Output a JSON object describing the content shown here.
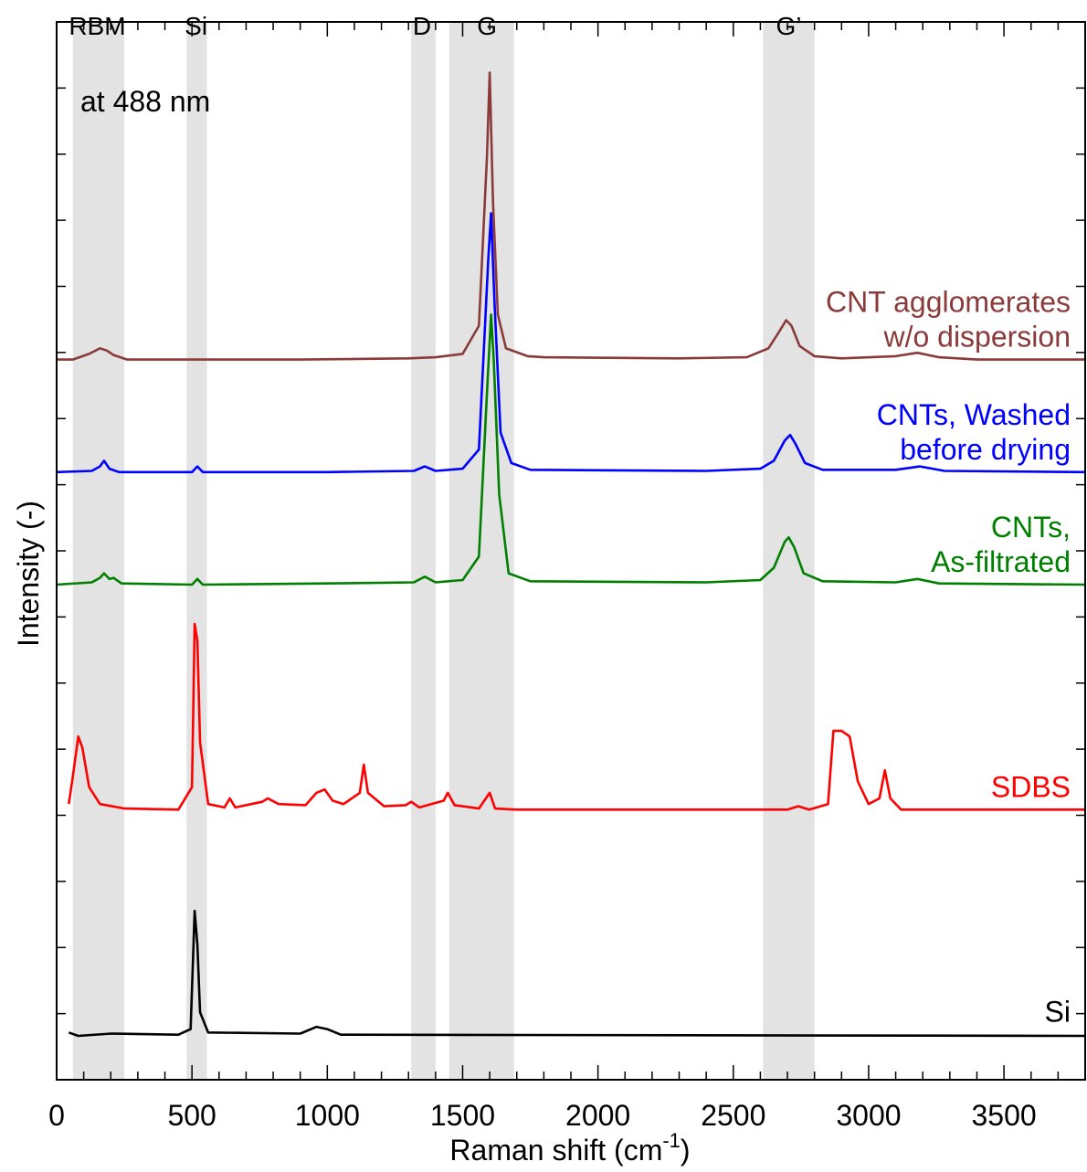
{
  "chart_data": {
    "type": "line",
    "xlabel": "Raman shift (cm",
    "xlabel_sup": "-1",
    "xlabel_end": ")",
    "ylabel": "Intensity (-)",
    "annotation": "at 488 nm",
    "xlim": [
      0,
      3800
    ],
    "x_ticks": [
      0,
      500,
      1000,
      1500,
      2000,
      2500,
      3000,
      3500
    ],
    "x_minor_step": 100,
    "y_tick_count": 15,
    "grid": false,
    "bands": [
      {
        "label": "RBM",
        "x0": 60,
        "x1": 250,
        "label_x": 150
      },
      {
        "label": "Si",
        "x0": 480,
        "x1": 555,
        "label_x": 515
      },
      {
        "label": "D",
        "x0": 1310,
        "x1": 1400,
        "label_x": 1350
      },
      {
        "label": "G",
        "x0": 1450,
        "x1": 1690,
        "label_x": 1590
      },
      {
        "label": "G’",
        "x0": 2610,
        "x1": 2800,
        "label_x": 2705
      }
    ],
    "series": [
      {
        "name": "CNT agglomerates w/o dispersion",
        "label_lines": [
          "CNT agglomerates",
          "w/o dispersion"
        ],
        "color": "#8B3A3A",
        "x_start": 0,
        "baseline": 2.0,
        "points": [
          [
            0,
            2.0
          ],
          [
            60,
            2.0
          ],
          [
            120,
            2.05
          ],
          [
            160,
            2.1
          ],
          [
            185,
            2.08
          ],
          [
            210,
            2.04
          ],
          [
            260,
            2.0
          ],
          [
            900,
            2.0
          ],
          [
            1300,
            2.01
          ],
          [
            1400,
            2.02
          ],
          [
            1500,
            2.05
          ],
          [
            1560,
            2.3
          ],
          [
            1590,
            3.8
          ],
          [
            1600,
            4.55
          ],
          [
            1612,
            3.4
          ],
          [
            1630,
            2.4
          ],
          [
            1660,
            2.1
          ],
          [
            1740,
            2.03
          ],
          [
            1800,
            2.02
          ],
          [
            2300,
            2.01
          ],
          [
            2550,
            2.02
          ],
          [
            2630,
            2.1
          ],
          [
            2670,
            2.25
          ],
          [
            2695,
            2.35
          ],
          [
            2715,
            2.3
          ],
          [
            2745,
            2.12
          ],
          [
            2800,
            2.03
          ],
          [
            2900,
            2.01
          ],
          [
            3100,
            2.03
          ],
          [
            3180,
            2.06
          ],
          [
            3260,
            2.02
          ],
          [
            3400,
            2.0
          ],
          [
            3800,
            2.0
          ]
        ]
      },
      {
        "name": "CNTs, Washed before drying",
        "label_lines": [
          "CNTs, Washed",
          "before drying"
        ],
        "color": "#0000FF",
        "x_start": 0,
        "baseline": 1.0,
        "points": [
          [
            0,
            1.0
          ],
          [
            130,
            1.01
          ],
          [
            160,
            1.05
          ],
          [
            175,
            1.1
          ],
          [
            195,
            1.03
          ],
          [
            230,
            1.0
          ],
          [
            500,
            1.0
          ],
          [
            520,
            1.05
          ],
          [
            540,
            1.0
          ],
          [
            1000,
            1.0
          ],
          [
            1320,
            1.01
          ],
          [
            1360,
            1.05
          ],
          [
            1400,
            1.01
          ],
          [
            1500,
            1.03
          ],
          [
            1560,
            1.2
          ],
          [
            1595,
            2.9
          ],
          [
            1605,
            3.3
          ],
          [
            1618,
            2.5
          ],
          [
            1640,
            1.35
          ],
          [
            1680,
            1.08
          ],
          [
            1750,
            1.02
          ],
          [
            2400,
            1.01
          ],
          [
            2600,
            1.03
          ],
          [
            2650,
            1.1
          ],
          [
            2690,
            1.28
          ],
          [
            2710,
            1.33
          ],
          [
            2730,
            1.25
          ],
          [
            2765,
            1.08
          ],
          [
            2830,
            1.02
          ],
          [
            3100,
            1.02
          ],
          [
            3190,
            1.05
          ],
          [
            3280,
            1.01
          ],
          [
            3800,
            1.0
          ]
        ]
      },
      {
        "name": "CNTs, As-filtrated",
        "label_lines": [
          "CNTs,",
          "As-filtrated"
        ],
        "color": "#008000",
        "x_start": 0,
        "baseline": 0.0,
        "points": [
          [
            0,
            0.0
          ],
          [
            130,
            0.02
          ],
          [
            160,
            0.06
          ],
          [
            175,
            0.1
          ],
          [
            195,
            0.05
          ],
          [
            210,
            0.06
          ],
          [
            240,
            0.01
          ],
          [
            500,
            0.0
          ],
          [
            520,
            0.05
          ],
          [
            540,
            0.0
          ],
          [
            1000,
            0.01
          ],
          [
            1320,
            0.02
          ],
          [
            1360,
            0.07
          ],
          [
            1400,
            0.02
          ],
          [
            1500,
            0.04
          ],
          [
            1560,
            0.25
          ],
          [
            1590,
            1.7
          ],
          [
            1605,
            2.4
          ],
          [
            1615,
            2.0
          ],
          [
            1635,
            0.8
          ],
          [
            1670,
            0.1
          ],
          [
            1750,
            0.03
          ],
          [
            2400,
            0.02
          ],
          [
            2600,
            0.04
          ],
          [
            2650,
            0.15
          ],
          [
            2690,
            0.38
          ],
          [
            2705,
            0.42
          ],
          [
            2725,
            0.33
          ],
          [
            2760,
            0.1
          ],
          [
            2830,
            0.03
          ],
          [
            3100,
            0.02
          ],
          [
            3180,
            0.05
          ],
          [
            3260,
            0.01
          ],
          [
            3800,
            0.0
          ]
        ]
      },
      {
        "name": "SDBS",
        "label_lines": [
          "SDBS"
        ],
        "color": "#FF0000",
        "x_start": 45,
        "baseline": -2.0,
        "points": [
          [
            45,
            -1.95
          ],
          [
            60,
            -1.7
          ],
          [
            80,
            -1.35
          ],
          [
            95,
            -1.45
          ],
          [
            120,
            -1.8
          ],
          [
            160,
            -1.95
          ],
          [
            250,
            -1.99
          ],
          [
            450,
            -2.0
          ],
          [
            500,
            -1.8
          ],
          [
            510,
            -0.35
          ],
          [
            520,
            -0.5
          ],
          [
            530,
            -1.4
          ],
          [
            560,
            -1.95
          ],
          [
            620,
            -1.98
          ],
          [
            640,
            -1.9
          ],
          [
            660,
            -1.98
          ],
          [
            760,
            -1.93
          ],
          [
            780,
            -1.9
          ],
          [
            820,
            -1.95
          ],
          [
            920,
            -1.96
          ],
          [
            960,
            -1.85
          ],
          [
            990,
            -1.82
          ],
          [
            1020,
            -1.92
          ],
          [
            1060,
            -1.95
          ],
          [
            1120,
            -1.85
          ],
          [
            1135,
            -1.6
          ],
          [
            1150,
            -1.85
          ],
          [
            1190,
            -1.93
          ],
          [
            1210,
            -1.97
          ],
          [
            1290,
            -1.96
          ],
          [
            1310,
            -1.93
          ],
          [
            1340,
            -1.98
          ],
          [
            1430,
            -1.92
          ],
          [
            1445,
            -1.85
          ],
          [
            1470,
            -1.96
          ],
          [
            1560,
            -1.99
          ],
          [
            1600,
            -1.85
          ],
          [
            1620,
            -1.99
          ],
          [
            1700,
            -2.0
          ],
          [
            2700,
            -2.0
          ],
          [
            2740,
            -1.97
          ],
          [
            2780,
            -2.0
          ],
          [
            2850,
            -1.95
          ],
          [
            2870,
            -1.3
          ],
          [
            2900,
            -1.3
          ],
          [
            2930,
            -1.35
          ],
          [
            2960,
            -1.75
          ],
          [
            3000,
            -1.95
          ],
          [
            3040,
            -1.9
          ],
          [
            3060,
            -1.65
          ],
          [
            3080,
            -1.9
          ],
          [
            3120,
            -2.0
          ],
          [
            3800,
            -2.0
          ]
        ]
      },
      {
        "name": "Si",
        "label_lines": [
          "Si"
        ],
        "color": "#000000",
        "x_start": 45,
        "baseline": -4.0,
        "points": [
          [
            45,
            -3.98
          ],
          [
            80,
            -4.01
          ],
          [
            200,
            -3.99
          ],
          [
            450,
            -4.0
          ],
          [
            495,
            -3.95
          ],
          [
            510,
            -2.9
          ],
          [
            520,
            -3.2
          ],
          [
            530,
            -3.8
          ],
          [
            560,
            -3.98
          ],
          [
            900,
            -3.99
          ],
          [
            960,
            -3.93
          ],
          [
            1000,
            -3.95
          ],
          [
            1050,
            -4.0
          ],
          [
            3800,
            -4.01
          ]
        ]
      }
    ]
  }
}
